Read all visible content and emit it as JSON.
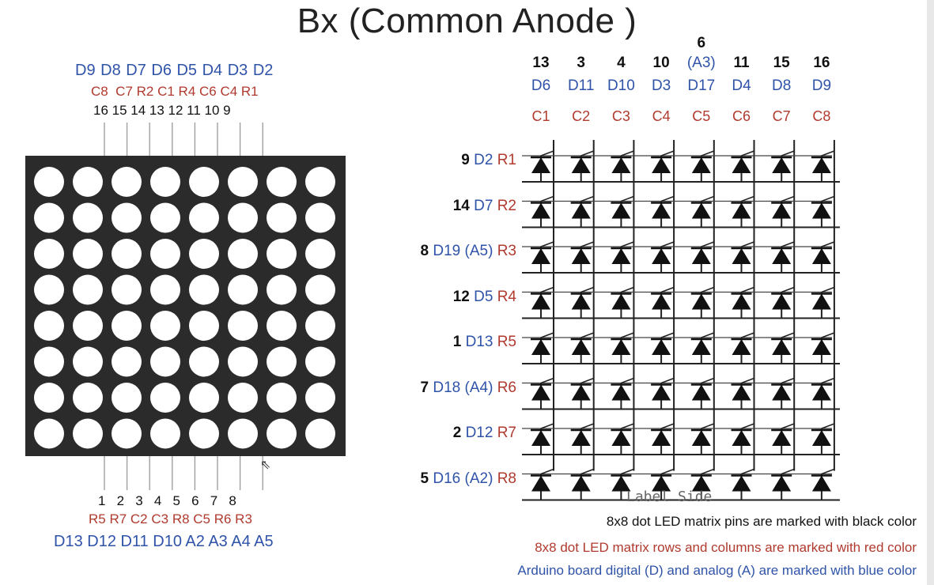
{
  "title": "Bx (Common  Anode )",
  "left_matrix": {
    "rows": 8,
    "cols": 8,
    "top_arduino": "D9 D8 D7 D6 D5 D4 D3 D2",
    "top_rc": "C8  C7 R2 C1 R4 C6 C4 R1",
    "top_pins": "16 15 14 13 12 11 10 9",
    "bottom_pins": "1   2   3   4   5   6   7   8",
    "bottom_rc": "R5 R7 C2 C3 R8 C5 R6 R3",
    "bottom_arduino": "D13 D12 D11 D10 A2 A3 A4 A5"
  },
  "schematic": {
    "columns": [
      {
        "pin": "13",
        "extra": "",
        "arduino": "D6",
        "col": "C1"
      },
      {
        "pin": "3",
        "extra": "",
        "arduino": "D11",
        "col": "C2"
      },
      {
        "pin": "4",
        "extra": "",
        "arduino": "D10",
        "col": "C3"
      },
      {
        "pin": "10",
        "extra": "",
        "arduino": "D3",
        "col": "C4"
      },
      {
        "pin": "6",
        "extra": "(A3)",
        "arduino": "D17",
        "col": "C5"
      },
      {
        "pin": "11",
        "extra": "",
        "arduino": "D4",
        "col": "C6"
      },
      {
        "pin": "15",
        "extra": "",
        "arduino": "D8",
        "col": "C7"
      },
      {
        "pin": "16",
        "extra": "",
        "arduino": "D9",
        "col": "C8"
      }
    ],
    "rows": [
      {
        "pin": "9",
        "arduino": "D2",
        "row": "R1"
      },
      {
        "pin": "14",
        "arduino": "D7",
        "row": "R2"
      },
      {
        "pin": "8",
        "arduino": "D19 (A5)",
        "row": "R3"
      },
      {
        "pin": "12",
        "arduino": "D5",
        "row": "R4"
      },
      {
        "pin": "1",
        "arduino": "D13",
        "row": "R5"
      },
      {
        "pin": "7",
        "arduino": "D18 (A4)",
        "row": "R6"
      },
      {
        "pin": "2",
        "arduino": "D12",
        "row": "R7"
      },
      {
        "pin": "5",
        "arduino": "D16 (A2)",
        "row": "R8"
      }
    ],
    "label_side": "Label Side"
  },
  "legend": {
    "pins_note": "8x8 dot LED matrix pins are marked with black color",
    "rc_note": "8x8 dot LED matrix rows and columns are marked with red color",
    "arduino_note": "Arduino board digital (D) and analog (A) are marked with blue color"
  },
  "colors": {
    "blue": "#2f53a8",
    "red": "#b03a2e",
    "black": "#111111",
    "matrix_bg": "#2b2b2b"
  }
}
